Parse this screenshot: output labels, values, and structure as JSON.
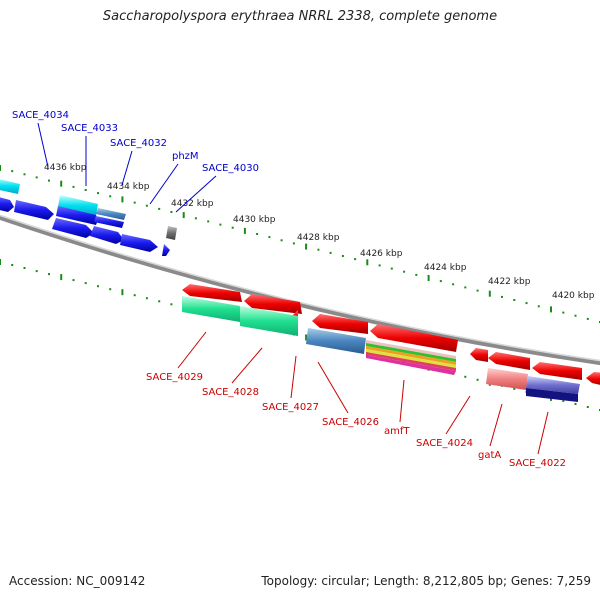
{
  "title": "Saccharopolyspora erythraea NRRL 2338, complete genome",
  "footer": {
    "accession": "Accession: NC_009142",
    "summary": "Topology: circular; Length: 8,212,805 bp; Genes: 7,259"
  },
  "scale_labels": [
    "4436 kbp",
    "4434 kbp",
    "4432 kbp",
    "4430 kbp",
    "4428 kbp",
    "4426 kbp",
    "4424 kbp",
    "4422 kbp",
    "4420 kbp"
  ],
  "top_gene_labels": [
    "SACE_4034",
    "SACE_4033",
    "SACE_4032",
    "phzM",
    "SACE_4030"
  ],
  "bottom_gene_labels": [
    "SACE_4029",
    "SACE_4028",
    "SACE_4027",
    "SACE_4026",
    "amfT",
    "SACE_4024",
    "gatA",
    "SACE_4022"
  ],
  "colors": {
    "forward_gene": "#1a1aee",
    "reverse_gene": "#ee0000",
    "top_label": "#0000cc",
    "bottom_label": "#cc0000",
    "tick": "#1a8a1a",
    "backbone": "#8a8a8a"
  }
}
